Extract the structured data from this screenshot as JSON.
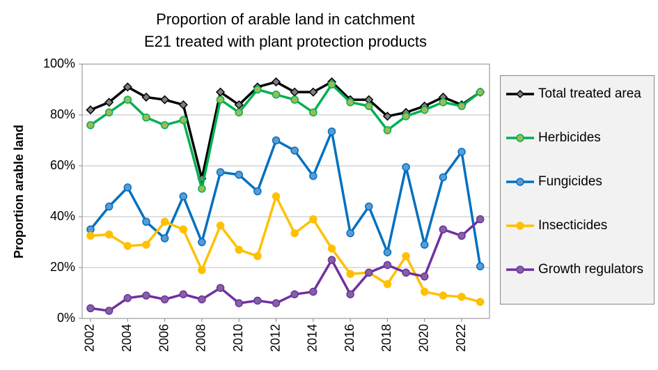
{
  "chart_data": {
    "type": "line",
    "title": "Proportion of arable land in catchment E21 treated with plant protection products",
    "ylabel": "Proportion arable land",
    "x": [
      2002,
      2003,
      2004,
      2005,
      2006,
      2007,
      2008,
      2009,
      2010,
      2011,
      2012,
      2013,
      2014,
      2015,
      2016,
      2017,
      2018,
      2019,
      2020,
      2021,
      2022,
      2023
    ],
    "xlim": [
      2001.55,
      2023.5
    ],
    "xticks": [
      2002,
      2004,
      2006,
      2008,
      2010,
      2012,
      2014,
      2016,
      2018,
      2020,
      2022
    ],
    "ylim": [
      0,
      100
    ],
    "yticks": [
      {
        "value": 0,
        "label": "0%"
      },
      {
        "value": 20,
        "label": "20%"
      },
      {
        "value": 40,
        "label": "40%"
      },
      {
        "value": 60,
        "label": "60%"
      },
      {
        "value": 80,
        "label": "80%"
      },
      {
        "value": 100,
        "label": "100%"
      }
    ],
    "grid": true,
    "legend": "right",
    "series": [
      {
        "name": "Total treated area",
        "color": "#000000",
        "marker": "diamond",
        "marker_fill": "#7f7f7f",
        "values": [
          82,
          85,
          91,
          87,
          86,
          84,
          55,
          89,
          84,
          91,
          93,
          89,
          89,
          93,
          86,
          86,
          79.5,
          81,
          83.5,
          87,
          84,
          89
        ]
      },
      {
        "name": "Herbicides",
        "color": "#00b050",
        "marker": "circle",
        "marker_fill": "#9bbb59",
        "values": [
          76,
          81,
          86,
          79,
          76,
          78,
          51,
          86,
          81,
          90,
          88,
          86,
          81,
          92,
          85,
          83.5,
          74,
          79.5,
          82,
          85,
          83.5,
          89
        ]
      },
      {
        "name": "Fungicides",
        "color": "#0070c0",
        "marker": "circle",
        "marker_fill": "#5b9bd5",
        "values": [
          35,
          44,
          51.5,
          38,
          31.5,
          48,
          30,
          57.5,
          56.5,
          50,
          70,
          66,
          56,
          73.5,
          33.5,
          44,
          26,
          59.5,
          29,
          55.5,
          65.5,
          20.5
        ]
      },
      {
        "name": "Insecticides",
        "color": "#ffc000",
        "marker": "circle",
        "marker_fill": "#ffc000",
        "values": [
          32.5,
          33,
          28.5,
          29,
          38,
          35,
          19,
          36.5,
          27,
          24.5,
          48,
          33.5,
          39,
          27.5,
          17.5,
          18,
          13.5,
          24.5,
          10.5,
          9,
          8.5,
          6.5
        ]
      },
      {
        "name": "Growth regulators",
        "color": "#7030a0",
        "marker": "circle",
        "marker_fill": "#8064a2",
        "values": [
          4,
          3,
          8,
          9,
          7.5,
          9.5,
          7.5,
          12,
          6,
          7,
          6,
          9.5,
          10.5,
          23,
          9.5,
          18,
          21,
          18,
          16.5,
          35,
          32.5,
          39
        ]
      }
    ]
  }
}
